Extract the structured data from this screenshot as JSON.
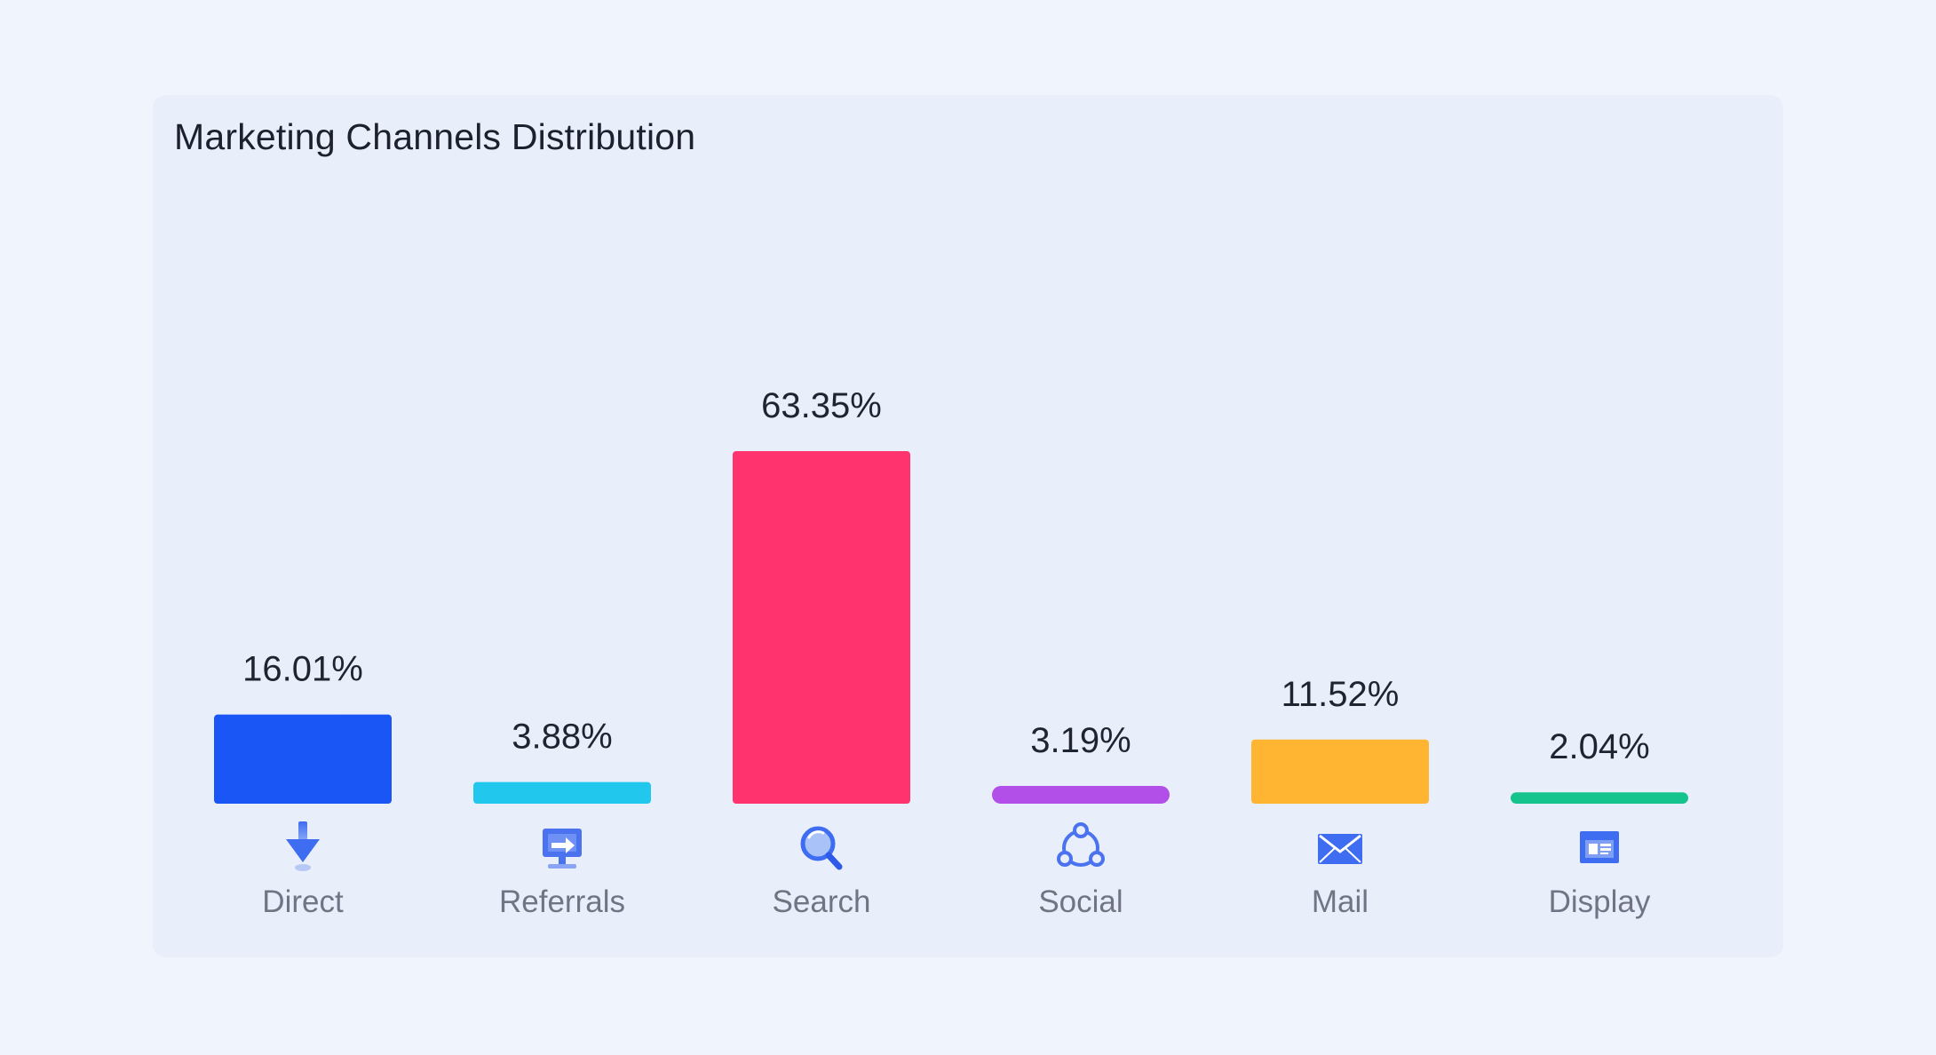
{
  "chart_data": {
    "type": "bar",
    "title": "Marketing Channels Distribution",
    "categories": [
      "Direct",
      "Referrals",
      "Search",
      "Social",
      "Mail",
      "Display"
    ],
    "values": [
      16.01,
      3.88,
      63.35,
      3.19,
      11.52,
      2.04
    ],
    "value_labels": [
      "16.01%",
      "3.88%",
      "63.35%",
      "3.19%",
      "11.52%",
      "2.04%"
    ],
    "colors": [
      "#1a56f5",
      "#22c7ee",
      "#ff336d",
      "#b24fe8",
      "#ffb531",
      "#15c48c"
    ],
    "icons": [
      "arrow-down-icon",
      "referral-screen-icon",
      "search-icon",
      "social-share-icon",
      "mail-icon",
      "display-window-icon"
    ],
    "xlabel": "",
    "ylabel": "",
    "ylim": [
      0,
      63.35
    ],
    "grid": false,
    "legend": "none"
  }
}
